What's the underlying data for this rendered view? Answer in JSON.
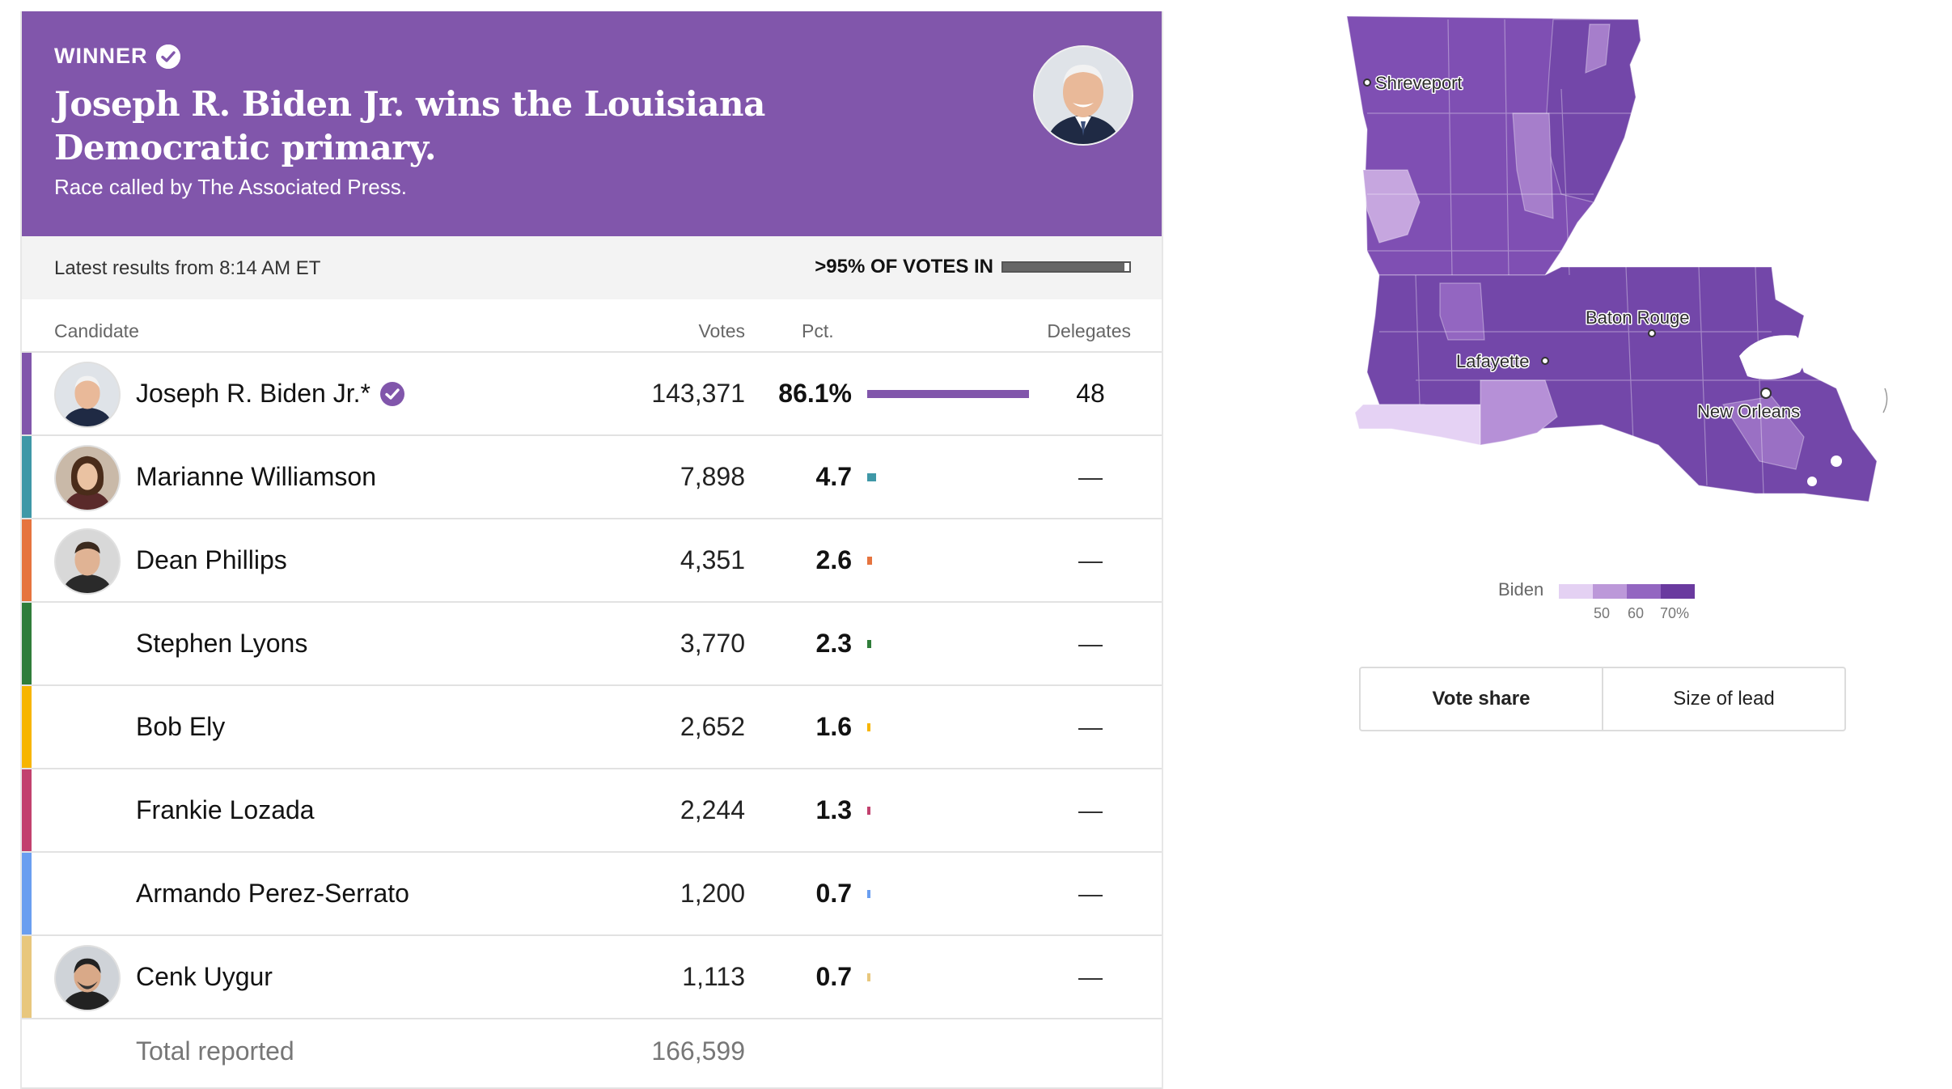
{
  "banner": {
    "winner_label": "WINNER",
    "headline": "Joseph R. Biden Jr. wins the Louisiana Democratic primary.",
    "called_by": "Race called by The Associated Press.",
    "color": "#8156ab"
  },
  "status": {
    "latest": "Latest results from 8:14 AM ET",
    "votes_in": ">95% OF VOTES IN",
    "votes_in_fraction": 0.96
  },
  "table": {
    "headers": {
      "candidate": "Candidate",
      "votes": "Votes",
      "pct": "Pct.",
      "delegates": "Delegates"
    },
    "rows": [
      {
        "name": "Joseph R. Biden Jr.*",
        "votes": "143,371",
        "pct": "86.1%",
        "pct_value": 86.1,
        "delegates": "48",
        "color": "#8156ab",
        "winner": true,
        "photo": "biden"
      },
      {
        "name": "Marianne Williamson",
        "votes": "7,898",
        "pct": "4.7",
        "pct_value": 4.7,
        "delegates": "—",
        "color": "#3f98a7",
        "winner": false,
        "photo": "williamson"
      },
      {
        "name": "Dean Phillips",
        "votes": "4,351",
        "pct": "2.6",
        "pct_value": 2.6,
        "delegates": "—",
        "color": "#e6743f",
        "winner": false,
        "photo": "phillips"
      },
      {
        "name": "Stephen Lyons",
        "votes": "3,770",
        "pct": "2.3",
        "pct_value": 2.3,
        "delegates": "—",
        "color": "#2f7d3a",
        "winner": false,
        "photo": null
      },
      {
        "name": "Bob Ely",
        "votes": "2,652",
        "pct": "1.6",
        "pct_value": 1.6,
        "delegates": "—",
        "color": "#f7b500",
        "winner": false,
        "photo": null
      },
      {
        "name": "Frankie Lozada",
        "votes": "2,244",
        "pct": "1.3",
        "pct_value": 1.3,
        "delegates": "—",
        "color": "#c2416e",
        "winner": false,
        "photo": null
      },
      {
        "name": "Armando Perez-Serrato",
        "votes": "1,200",
        "pct": "0.7",
        "pct_value": 0.7,
        "delegates": "—",
        "color": "#6a9ef0",
        "winner": false,
        "photo": null
      },
      {
        "name": "Cenk Uygur",
        "votes": "1,113",
        "pct": "0.7",
        "pct_value": 0.7,
        "delegates": "—",
        "color": "#e8c77d",
        "winner": false,
        "photo": "uygur"
      }
    ],
    "total_label": "Total reported",
    "total_votes": "166,599"
  },
  "map": {
    "cities": [
      "Shreveport",
      "Baton Rouge",
      "Lafayette",
      "New Orleans"
    ],
    "legend": {
      "title": "Biden",
      "ticks": [
        "50",
        "60",
        "70%"
      ],
      "colors": [
        "#e4d1f3",
        "#bc98d9",
        "#9366c1",
        "#6a3a9f"
      ]
    },
    "toggle": {
      "vote_share": "Vote share",
      "size_of_lead": "Size of lead",
      "active": "vote_share"
    }
  }
}
